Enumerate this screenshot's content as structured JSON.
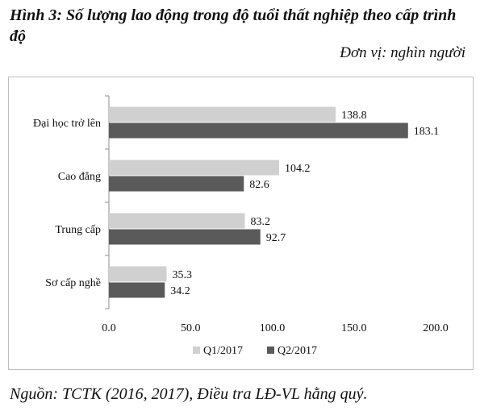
{
  "header": {
    "title": "Hình 3: Số lượng lao động trong độ tuổi thất nghiệp theo cấp trình độ",
    "unit": "Đơn vị: nghìn người"
  },
  "footer": {
    "source": "Nguồn: TCTK (2016, 2017), Điều tra LĐ-VL hằng quý."
  },
  "colors": {
    "q1": "#d0d0d0",
    "q2": "#5a5a5a"
  },
  "chart_data": {
    "type": "bar",
    "orientation": "horizontal",
    "categories": [
      "Đại học trở lên",
      "Cao đẳng",
      "Trung cấp",
      "Sơ cấp nghề"
    ],
    "series": [
      {
        "name": "Q1/2017",
        "values": [
          138.8,
          104.2,
          83.2,
          35.3
        ]
      },
      {
        "name": "Q2/2017",
        "values": [
          183.1,
          82.6,
          92.7,
          34.2
        ]
      }
    ],
    "xlim": [
      0,
      200
    ],
    "xticks": [
      "0.0",
      "50.0",
      "100.0",
      "150.0",
      "200.0"
    ],
    "value_labels": [
      [
        "138.8",
        "104.2",
        "83.2",
        "35.3"
      ],
      [
        "183.1",
        "82.6",
        "92.7",
        "34.2"
      ]
    ],
    "grid": false,
    "legend": "bottom"
  }
}
